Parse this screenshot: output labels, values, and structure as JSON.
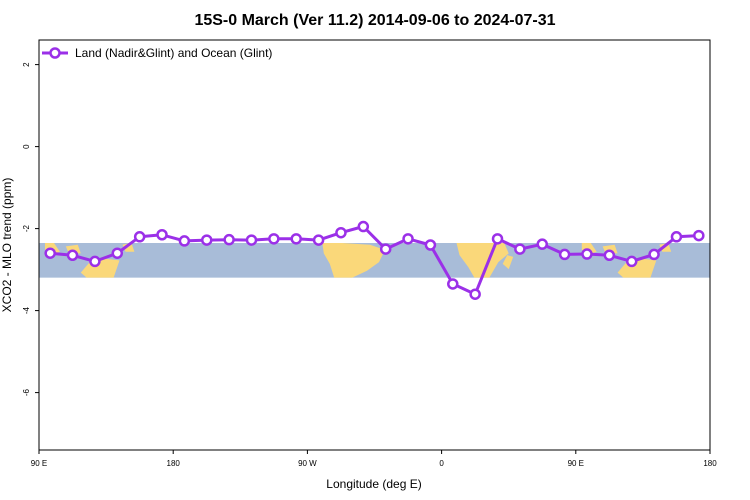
{
  "chart_data": {
    "type": "line",
    "title": "15S-0 March (Ver 11.2)   2014-09-06 to 2024-07-31",
    "xlabel": "Longitude (deg E)",
    "ylabel": "XCO2 - MLO trend (ppm)",
    "x_ticks": [
      {
        "value": 90,
        "label": "90 E"
      },
      {
        "value": 180,
        "label": "180"
      },
      {
        "value": 270,
        "label": "90 W"
      },
      {
        "value": 360,
        "label": "0"
      },
      {
        "value": 450,
        "label": "90 E"
      },
      {
        "value": 540,
        "label": "180"
      }
    ],
    "y_ticks": [
      {
        "value": 2,
        "label": "2"
      },
      {
        "value": 0,
        "label": "0"
      },
      {
        "value": -2,
        "label": "-2"
      },
      {
        "value": -4,
        "label": "-4"
      },
      {
        "value": -6,
        "label": "-6"
      }
    ],
    "xlim": [
      90,
      540
    ],
    "ylim": [
      -7.4,
      2.6
    ],
    "grid": false,
    "legend_position": "top-left",
    "map_band": {
      "y_top": -2.35,
      "y_bottom": -3.2,
      "ocean_color": "#a8bcd8",
      "land_color": "#fad87a"
    },
    "series": [
      {
        "name": "Land (Nadir&Glint) and Ocean (Glint)",
        "color": "#9b30e8",
        "x": [
          97.5,
          112.5,
          127.5,
          142.5,
          157.5,
          172.5,
          187.5,
          202.5,
          217.5,
          232.5,
          247.5,
          262.5,
          277.5,
          292.5,
          307.5,
          322.5,
          337.5,
          352.5,
          367.5,
          382.5,
          397.5,
          412.5,
          427.5,
          442.5,
          457.5,
          472.5,
          487.5,
          502.5,
          517.5,
          532.5
        ],
        "y": [
          -2.6,
          -2.65,
          -2.8,
          -2.6,
          -2.2,
          -2.15,
          -2.3,
          -2.28,
          -2.27,
          -2.28,
          -2.25,
          -2.25,
          -2.28,
          -2.1,
          -1.95,
          -2.5,
          -2.25,
          -2.4,
          -3.35,
          -3.6,
          -2.25,
          -2.5,
          -2.38,
          -2.63,
          -2.62,
          -2.65,
          -2.8,
          -2.63,
          -2.2,
          -2.17
        ]
      }
    ]
  }
}
